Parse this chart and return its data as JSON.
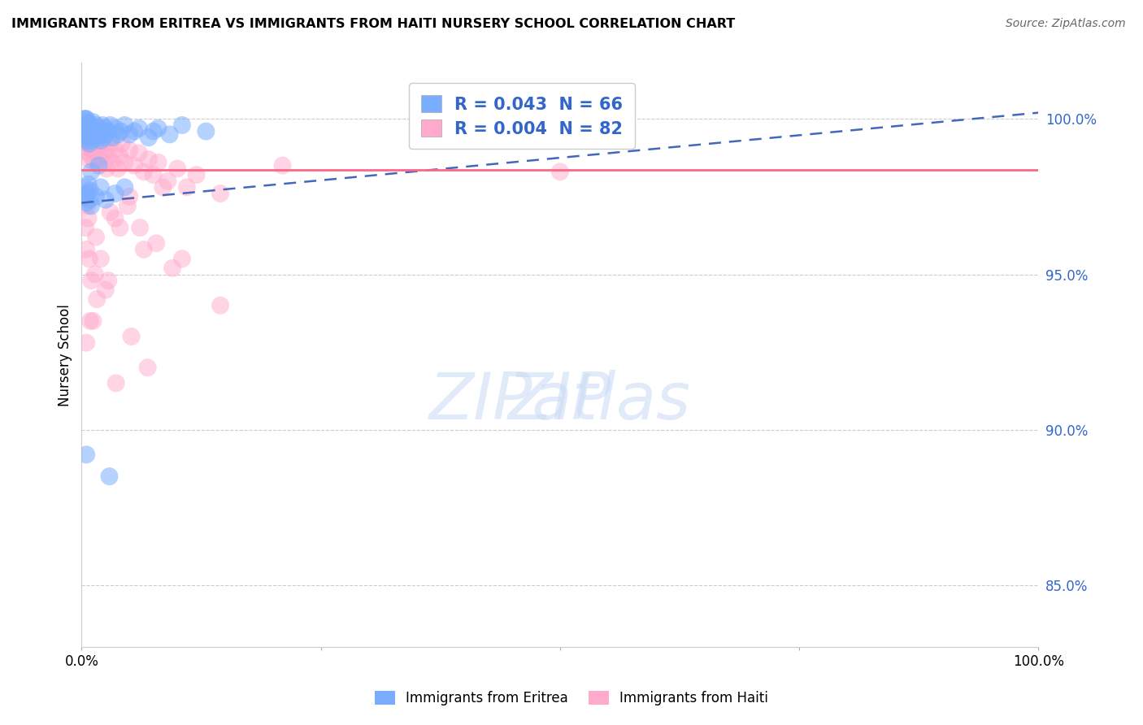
{
  "title": "IMMIGRANTS FROM ERITREA VS IMMIGRANTS FROM HAITI NURSERY SCHOOL CORRELATION CHART",
  "source": "Source: ZipAtlas.com",
  "ylabel": "Nursery School",
  "y_ticks": [
    85.0,
    90.0,
    95.0,
    100.0
  ],
  "y_tick_labels": [
    "85.0%",
    "90.0%",
    "95.0%",
    "100.0%"
  ],
  "xmin": 0.0,
  "xmax": 100.0,
  "ymin": 83.0,
  "ymax": 101.8,
  "legend_eritrea": "R = 0.043  N = 66",
  "legend_haiti": "R = 0.004  N = 82",
  "legend_label_eritrea": "Immigrants from Eritrea",
  "legend_label_haiti": "Immigrants from Haiti",
  "color_eritrea": "#7aadff",
  "color_haiti": "#ffaacc",
  "color_eritrea_line": "#4466bb",
  "color_haiti_line": "#ff6688",
  "eritrea_x": [
    0.2,
    0.3,
    0.3,
    0.4,
    0.4,
    0.5,
    0.5,
    0.5,
    0.6,
    0.6,
    0.7,
    0.7,
    0.8,
    0.8,
    0.9,
    0.9,
    1.0,
    1.1,
    1.2,
    1.2,
    1.3,
    1.4,
    1.5,
    1.6,
    1.7,
    1.8,
    1.9,
    2.0,
    2.1,
    2.2,
    2.3,
    2.5,
    2.6,
    2.8,
    3.0,
    3.2,
    3.5,
    3.8,
    4.1,
    4.5,
    5.0,
    5.5,
    6.0,
    7.0,
    7.5,
    8.0,
    9.2,
    10.5,
    13.0,
    0.3,
    0.4,
    0.5,
    0.6,
    0.7,
    0.8,
    0.9,
    1.0,
    1.5,
    2.0,
    2.5,
    3.5,
    4.5,
    1.8,
    1.0,
    0.5,
    2.9
  ],
  "eritrea_y": [
    99.8,
    99.5,
    100.0,
    99.6,
    100.0,
    99.7,
    99.3,
    100.0,
    99.9,
    99.4,
    99.8,
    99.6,
    99.7,
    99.2,
    99.5,
    99.8,
    99.3,
    99.6,
    99.9,
    99.4,
    99.7,
    99.5,
    99.8,
    99.6,
    99.4,
    99.7,
    99.5,
    99.3,
    99.6,
    99.8,
    99.4,
    99.7,
    99.5,
    99.6,
    99.8,
    99.4,
    99.7,
    99.5,
    99.6,
    99.8,
    99.5,
    99.6,
    99.7,
    99.4,
    99.6,
    99.7,
    99.5,
    99.8,
    99.6,
    97.8,
    97.5,
    97.3,
    97.6,
    97.9,
    97.4,
    97.7,
    97.2,
    97.5,
    97.8,
    97.4,
    97.6,
    97.8,
    98.5,
    98.3,
    89.2,
    88.5
  ],
  "haiti_x": [
    0.2,
    0.3,
    0.3,
    0.4,
    0.5,
    0.5,
    0.6,
    0.6,
    0.7,
    0.7,
    0.8,
    0.8,
    0.9,
    1.0,
    1.0,
    1.1,
    1.2,
    1.3,
    1.4,
    1.5,
    1.6,
    1.7,
    1.8,
    1.9,
    2.0,
    2.1,
    2.2,
    2.3,
    2.5,
    2.6,
    2.8,
    3.0,
    3.2,
    3.5,
    3.8,
    4.0,
    4.2,
    4.5,
    5.0,
    5.5,
    6.0,
    6.5,
    7.0,
    7.5,
    8.0,
    9.0,
    10.0,
    11.0,
    12.0,
    14.5,
    50.0,
    0.4,
    0.5,
    0.6,
    0.7,
    0.8,
    1.0,
    1.5,
    2.0,
    3.0,
    4.0,
    5.0,
    6.5,
    7.8,
    9.5,
    2.5,
    1.4,
    3.5,
    4.8,
    6.1,
    8.5,
    21.0,
    0.9,
    1.6,
    2.8,
    5.2,
    10.5,
    14.5,
    0.5,
    1.2,
    3.6,
    6.9
  ],
  "haiti_y": [
    99.5,
    99.2,
    99.8,
    99.4,
    99.6,
    99.1,
    99.7,
    99.3,
    99.5,
    98.9,
    99.4,
    98.7,
    99.2,
    99.6,
    98.8,
    99.0,
    99.4,
    98.6,
    99.1,
    99.5,
    98.9,
    99.3,
    98.7,
    99.1,
    99.5,
    98.8,
    99.2,
    98.6,
    99.0,
    98.4,
    98.8,
    99.2,
    98.6,
    99.0,
    98.4,
    98.8,
    99.2,
    98.6,
    99.0,
    98.5,
    98.9,
    98.3,
    98.7,
    98.2,
    98.6,
    98.0,
    98.4,
    97.8,
    98.2,
    97.6,
    98.3,
    96.5,
    95.8,
    97.2,
    96.8,
    95.5,
    94.8,
    96.2,
    95.5,
    97.0,
    96.5,
    97.5,
    95.8,
    96.0,
    95.2,
    94.5,
    95.0,
    96.8,
    97.2,
    96.5,
    97.8,
    98.5,
    93.5,
    94.2,
    94.8,
    93.0,
    95.5,
    94.0,
    92.8,
    93.5,
    91.5,
    92.0
  ]
}
